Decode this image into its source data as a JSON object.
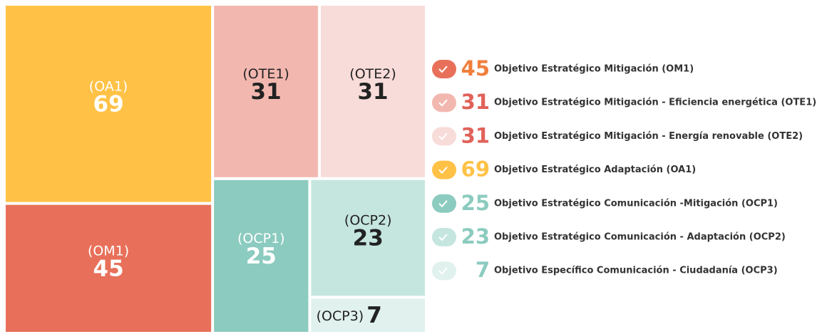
{
  "chart_data": {
    "type": "treemap",
    "items": [
      {
        "code": "(OM1)",
        "name": "Objetivo Estratégico Mitigación (OM1)",
        "value": 45,
        "color": "#e8705a",
        "value_color": "#f07f3c"
      },
      {
        "code": "(OTE1)",
        "name": "Objetivo Estratégico Mitigación - Eficiencia energética (OTE1)",
        "value": 31,
        "color": "#f2b8b0",
        "value_color": "#e0625a"
      },
      {
        "code": "(OTE2)",
        "name": "Objetivo Estratégico Mitigación - Energía renovable (OTE2)",
        "value": 31,
        "color": "#f8dcd9",
        "value_color": "#e0625a"
      },
      {
        "code": "(OA1)",
        "name": "Objetivo Estratégico Adaptación (OA1)",
        "value": 69,
        "color": "#ffc247",
        "value_color": "#ffc247"
      },
      {
        "code": "(OCP1)",
        "name": "Objetivo Estratégico Comunicación -Mitigación (OCP1)",
        "value": 25,
        "color": "#8ccbbf",
        "value_color": "#8ccbbf"
      },
      {
        "code": "(OCP2)",
        "name": "Objetivo Estratégico Comunicación - Adaptación (OCP2)",
        "value": 23,
        "color": "#c5e6df",
        "value_color": "#8ccbbf"
      },
      {
        "code": "(OCP3)",
        "name": "Objetivo Específico Comunicación - Ciudadanía (OCP3)",
        "value": 7,
        "color": "#e0f1ee",
        "value_color": "#8ccbbf"
      }
    ]
  }
}
